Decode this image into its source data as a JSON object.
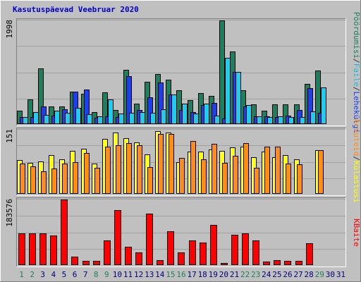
{
  "chart_data": {
    "type": "bar",
    "title": "Kasutuspäevad Veebruar 2020",
    "categories": [
      "1",
      "2",
      "3",
      "4",
      "5",
      "6",
      "7",
      "8",
      "9",
      "10",
      "11",
      "12",
      "13",
      "14",
      "15",
      "16",
      "17",
      "18",
      "19",
      "20",
      "21",
      "22",
      "23",
      "24",
      "25",
      "26",
      "27",
      "28",
      "29",
      "30",
      "31"
    ],
    "weekend_days": [
      1,
      2,
      8,
      9,
      15,
      16,
      22,
      23,
      29
    ],
    "colors": {
      "kulastused": "#1e7e5e",
      "lehed": "#1c3ff0",
      "failid": "#22ccee",
      "kulastajad": "#ffff22",
      "arvuteid": "#ff8c1a",
      "kbaite": "#ff0000",
      "weekend_tick": "#1e7e5e",
      "weekday_tick": "#000080",
      "title": "#0000cc"
    },
    "panels": [
      {
        "id": "top",
        "axis_max_label": "1998",
        "ylim": [
          0,
          1998
        ],
        "legend": [
          {
            "label": "Pöördumisi",
            "color": "#1e7e5e"
          },
          {
            "label": "/",
            "color": "#333333"
          },
          {
            "label": "Faile",
            "color": "#22bbdd"
          },
          {
            "label": "/",
            "color": "#333333"
          },
          {
            "label": "Lehekülgi",
            "color": "#1c3ff0"
          }
        ],
        "series": [
          {
            "name": "Pöördumisi",
            "values": [
              260,
              470,
              1070,
              340,
              340,
              630,
              580,
              230,
              610,
              270,
              1050,
              390,
              820,
              960,
              860,
              650,
              460,
              600,
              550,
              2000,
              1400,
              650,
              380,
              260,
              380,
              380,
              380,
              770,
              1030,
              0,
              0
            ]
          },
          {
            "name": "Lehekülgi",
            "values": [
              130,
              140,
              340,
              160,
              280,
              620,
              670,
              120,
              150,
              130,
              930,
              270,
              510,
              800,
              570,
              270,
              230,
              370,
              410,
              110,
              1000,
              340,
              150,
              150,
              130,
              160,
              270,
              690,
              220,
              0,
              0
            ]
          },
          {
            "name": "Faile",
            "values": [
              130,
              230,
              180,
              260,
              220,
              310,
              190,
              150,
              470,
              210,
              220,
              230,
              220,
              280,
              570,
              400,
              200,
              400,
              160,
              1280,
              1000,
              370,
              150,
              130,
              150,
              130,
              130,
              250,
              710,
              0,
              0
            ]
          }
        ]
      },
      {
        "id": "middle",
        "axis_max_label": "151",
        "ylim": [
          0,
          151
        ],
        "legend": [
          {
            "label": "Arvuteid",
            "color": "#ff8c1a"
          },
          {
            "label": "/",
            "color": "#333333"
          },
          {
            "label": "Külastusi",
            "color": "#ffff00"
          }
        ],
        "series": [
          {
            "name": "Külastusi",
            "values": [
              79,
              73,
              76,
              91,
              82,
              101,
              107,
              72,
              130,
              145,
              131,
              121,
              93,
              148,
              144,
              74,
              100,
              100,
              104,
              101,
              110,
              112,
              87,
              100,
              86,
              92,
              82,
              0,
              103,
              0,
              0
            ]
          },
          {
            "name": "Arvuteid",
            "values": [
              72,
              65,
              53,
              60,
              71,
              75,
              96,
              62,
              111,
              115,
              119,
              114,
              63,
              141,
              141,
              84,
              125,
              82,
              118,
              73,
              89,
              119,
              62,
              112,
              112,
              72,
              70,
              0,
              103,
              0,
              0
            ]
          }
        ]
      },
      {
        "id": "bottom",
        "axis_max_label": "183576",
        "ylim": [
          0,
          183576
        ],
        "legend": [
          {
            "label": "KBaite",
            "color": "#ff0000"
          }
        ],
        "series": [
          {
            "name": "KBaite",
            "values": [
              89000,
              88000,
              88000,
              83000,
              183000,
              23000,
              12000,
              12000,
              70000,
              154000,
              52000,
              35000,
              144000,
              14000,
              94000,
              35000,
              70000,
              63000,
              113000,
              6000,
              84000,
              88000,
              69000,
              9000,
              14000,
              11000,
              11000,
              61000,
              0,
              0,
              0
            ]
          }
        ]
      }
    ]
  }
}
